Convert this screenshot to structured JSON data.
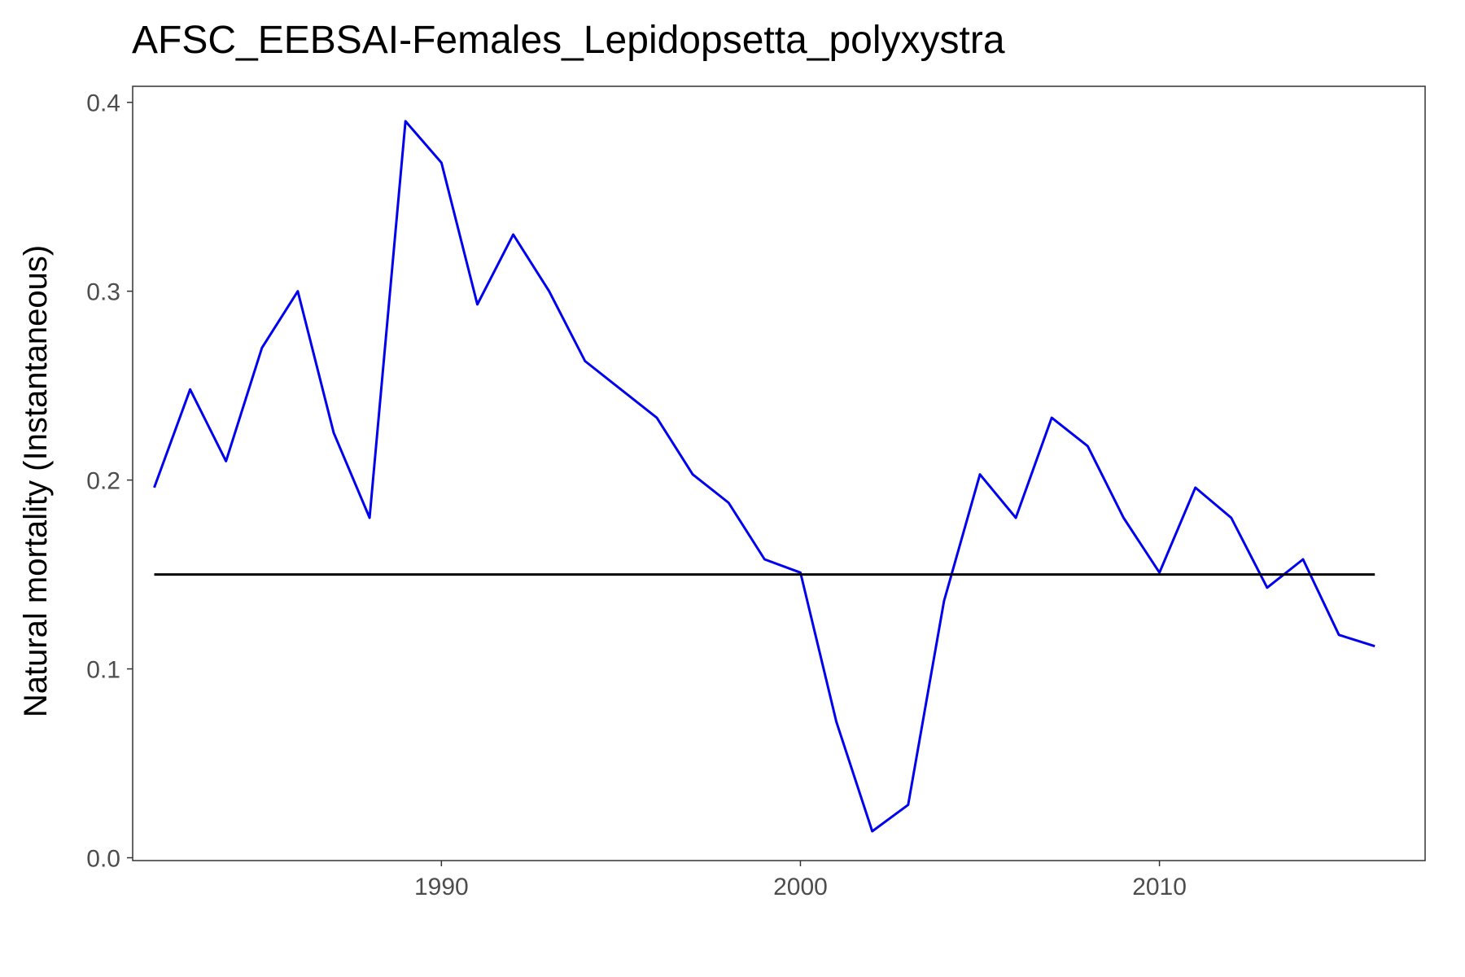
{
  "chart_data": {
    "type": "line",
    "title": "AFSC_EEBSAI-Females_Lepidopsetta_polyxystra",
    "xlabel": "",
    "ylabel": "Natural mortality (Instantaneous)",
    "xlim": [
      1981.4,
      2017.4
    ],
    "ylim": [
      -0.0015,
      0.4085
    ],
    "x_ticks": [
      1990,
      2000,
      2010
    ],
    "y_ticks": [
      0.0,
      0.1,
      0.2,
      0.3,
      0.4
    ],
    "y_tick_labels": [
      "0.0",
      "0.1",
      "0.2",
      "0.3",
      "0.4"
    ],
    "grid": false,
    "legend": "none",
    "series": [
      {
        "color": "#0000ee",
        "x": [
          1982,
          1983,
          1984,
          1985,
          1986,
          1987,
          1988,
          1989,
          1990,
          1991,
          1992,
          1993,
          1994,
          1995,
          1996,
          1997,
          1998,
          1999,
          2000,
          2001,
          2002,
          2003,
          2004,
          2005,
          2006,
          2007,
          2008,
          2009,
          2010,
          2011,
          2012,
          2013,
          2014,
          2015,
          2016
        ],
        "values": [
          0.196,
          0.248,
          0.21,
          0.27,
          0.3,
          0.225,
          0.18,
          0.39,
          0.368,
          0.293,
          0.33,
          0.3,
          0.263,
          0.248,
          0.233,
          0.203,
          0.188,
          0.158,
          0.151,
          0.072,
          0.014,
          0.028,
          0.136,
          0.203,
          0.18,
          0.233,
          0.218,
          0.18,
          0.151,
          0.196,
          0.18,
          0.143,
          0.158,
          0.118,
          0.112
        ]
      },
      {
        "color": "#000000",
        "x": [
          1982,
          2016
        ],
        "values": [
          0.15,
          0.15
        ]
      }
    ]
  }
}
